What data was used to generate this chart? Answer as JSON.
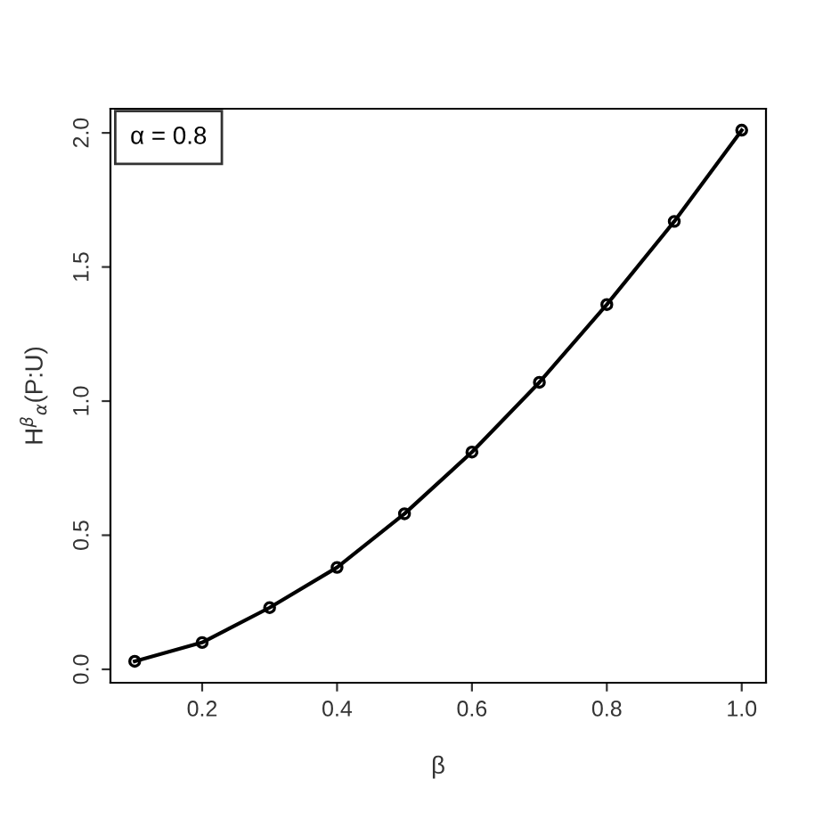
{
  "chart_data": {
    "type": "line",
    "xlabel": "β",
    "ylabel": "H$^{β}$$_{α}$(P:U)",
    "x": [
      0.1,
      0.2,
      0.3,
      0.4,
      0.5,
      0.6,
      0.7,
      0.8,
      0.9,
      1.0
    ],
    "series": [
      {
        "color": "#000000",
        "values": [
          0.03,
          0.1,
          0.23,
          0.38,
          0.58,
          0.81,
          1.07,
          1.36,
          1.67,
          2.01
        ]
      }
    ],
    "annotations": [
      "α = 0.8"
    ],
    "xlim": [
      0.064,
      1.036
    ],
    "ylim": [
      -0.05,
      2.09
    ],
    "xticks": [
      0.2,
      0.4,
      0.6,
      0.8,
      {
        "value": 1,
        "label": "1.0"
      }
    ],
    "yticks": [
      {
        "value": 0,
        "label": "0.0"
      },
      0.5,
      {
        "value": 1,
        "label": "1.0"
      },
      1.5,
      {
        "value": 2,
        "label": "2.0"
      }
    ],
    "marker": "circle",
    "line_style": "solid",
    "grid": false
  }
}
